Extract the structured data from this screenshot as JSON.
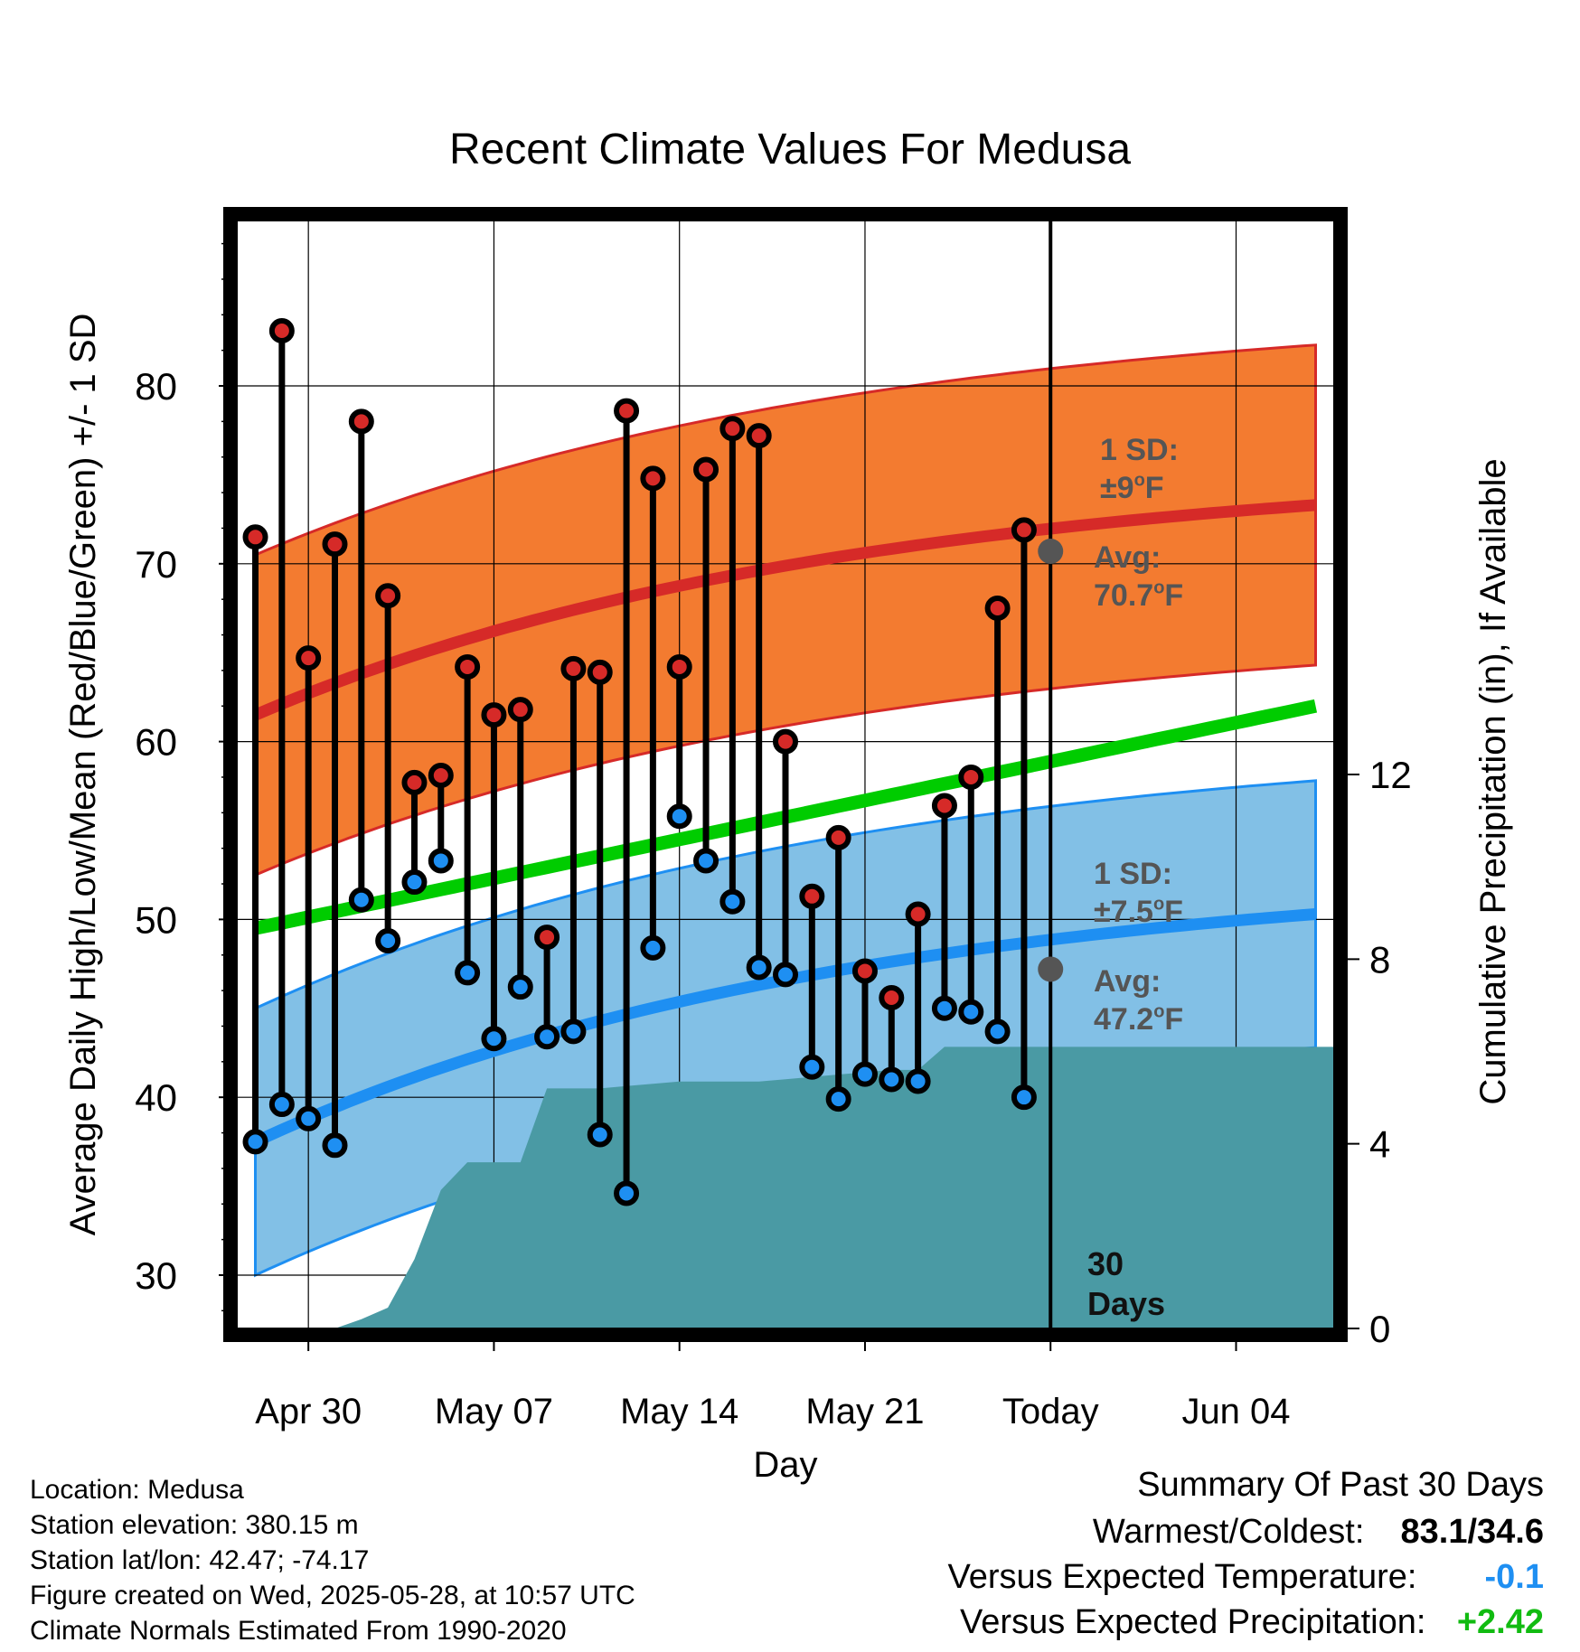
{
  "title": "Recent Climate Values For Medusa",
  "chart_data": {
    "type": "line",
    "title": "Recent Climate Values For Medusa",
    "xlabel": "Day",
    "ylabel": "Average Daily High/Low/Mean (Red/Blue/Green) +/- 1 SD",
    "y2label": "Cumulative Precipitation (in), If Available",
    "x_ticks": [
      "Apr 30",
      "May 07",
      "May 14",
      "May 21",
      "Today",
      "Jun 04"
    ],
    "y_ticks": [
      30,
      40,
      50,
      60,
      70,
      80
    ],
    "y2_ticks": [
      0,
      4,
      8,
      12
    ],
    "ylim": [
      27,
      89.3
    ],
    "y2lim": [
      0,
      24
    ],
    "xlim": [
      -0.7,
      40.7
    ],
    "today_index": 30,
    "dates": [
      "Apr 28",
      "Apr 29",
      "Apr 30",
      "May 01",
      "May 02",
      "May 03",
      "May 04",
      "May 05",
      "May 06",
      "May 07",
      "May 08",
      "May 09",
      "May 10",
      "May 11",
      "May 12",
      "May 13",
      "May 14",
      "May 15",
      "May 16",
      "May 17",
      "May 18",
      "May 19",
      "May 20",
      "May 21",
      "May 22",
      "May 23",
      "May 24",
      "May 25",
      "May 26",
      "May 27"
    ],
    "daily_high": [
      71.5,
      83.1,
      64.7,
      71.1,
      78.0,
      68.2,
      57.7,
      58.1,
      64.2,
      61.5,
      61.8,
      49.0,
      64.1,
      63.9,
      78.6,
      74.8,
      64.2,
      75.3,
      77.6,
      77.2,
      60.0,
      51.3,
      54.6,
      47.1,
      45.6,
      50.3,
      56.4,
      58.0,
      67.5,
      71.9
    ],
    "daily_low": [
      37.5,
      39.6,
      38.8,
      37.3,
      51.1,
      48.8,
      52.1,
      53.3,
      47.0,
      43.3,
      46.2,
      43.4,
      43.7,
      37.9,
      34.6,
      48.4,
      55.8,
      53.3,
      51.0,
      47.3,
      46.9,
      41.7,
      39.9,
      41.3,
      41.0,
      40.9,
      45.0,
      44.8,
      43.7,
      40.0
    ],
    "normal_high": {
      "start": 61.5,
      "today": 70.7,
      "end": 73.3,
      "sd": 9
    },
    "normal_low": {
      "start": 37.5,
      "today": 47.2,
      "end": 50.3,
      "sd": 7.5
    },
    "normal_mean": {
      "start": 49.5,
      "end": 62.0
    },
    "cumulative_precip": [
      0,
      0,
      0,
      0,
      0.2,
      0.45,
      1.5,
      3.0,
      3.6,
      3.6,
      3.6,
      5.2,
      5.2,
      5.2,
      5.25,
      5.3,
      5.35,
      5.35,
      5.35,
      5.35,
      5.4,
      5.45,
      5.5,
      5.55,
      5.6,
      5.6,
      6.1,
      6.1,
      6.1,
      6.1,
      6.1,
      6.1,
      6.1,
      6.1,
      6.1,
      6.1,
      6.1,
      6.1,
      6.1,
      6.1,
      6.1,
      6.1
    ],
    "annotations": {
      "high_sd_label": "1 SD:",
      "high_sd_value": "±9",
      "high_avg_label": "Avg:",
      "high_avg_value": "70.7",
      "low_sd_label": "1 SD:",
      "low_sd_value": "±7.5",
      "low_avg_label": "Avg:",
      "low_avg_value": "47.2",
      "degree_unit": "o",
      "temp_unit": "F",
      "days_count": "30",
      "days_label": "Days"
    },
    "colors": {
      "high_band": "#f37b30",
      "high_line": "#d62a28",
      "low_band": "#82c0e6",
      "low_line": "#1e8ff2",
      "mean_line": "#00cc00",
      "precip": "#4a9aa4",
      "high_dot": "#d62a28",
      "low_dot": "#1e8ff2",
      "annotation": "#555555",
      "avg_marker": "#555555"
    }
  },
  "footer": {
    "location": "Location: Medusa",
    "elevation": "Station elevation: 380.15 m",
    "latlon": "Station lat/lon: 42.47; -74.17",
    "created": "Figure created on Wed, 2025-05-28, at 10:57 UTC",
    "normals": "Climate Normals Estimated From 1990-2020"
  },
  "summary": {
    "title": "Summary Of Past 30 Days",
    "warmest_label": "Warmest/Coldest:",
    "warmest_value": "83.1/34.6",
    "temp_label": "Versus Expected Temperature:",
    "temp_value": "-0.1",
    "temp_color": "#1e8ff2",
    "precip_label": "Versus Expected Precipitation:",
    "precip_value": "+2.42",
    "precip_color": "#11bb11"
  }
}
